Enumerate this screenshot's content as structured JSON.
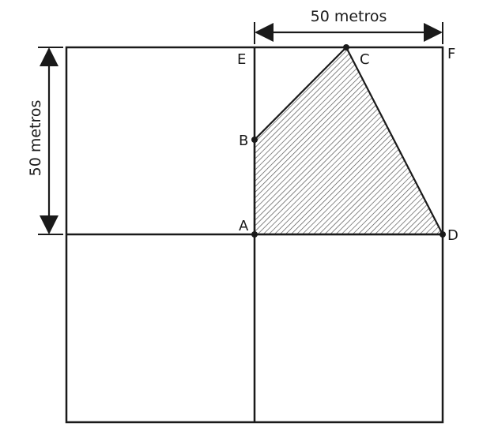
{
  "figure": {
    "dimension_top": "50 metros",
    "dimension_left": "50 metros",
    "points": {
      "A": "A",
      "B": "B",
      "C": "C",
      "D": "D",
      "E": "E",
      "F": "F"
    }
  },
  "colors": {
    "line": "#1a1a1a",
    "hatch": "#4a4a4a",
    "background": "#ffffff"
  }
}
